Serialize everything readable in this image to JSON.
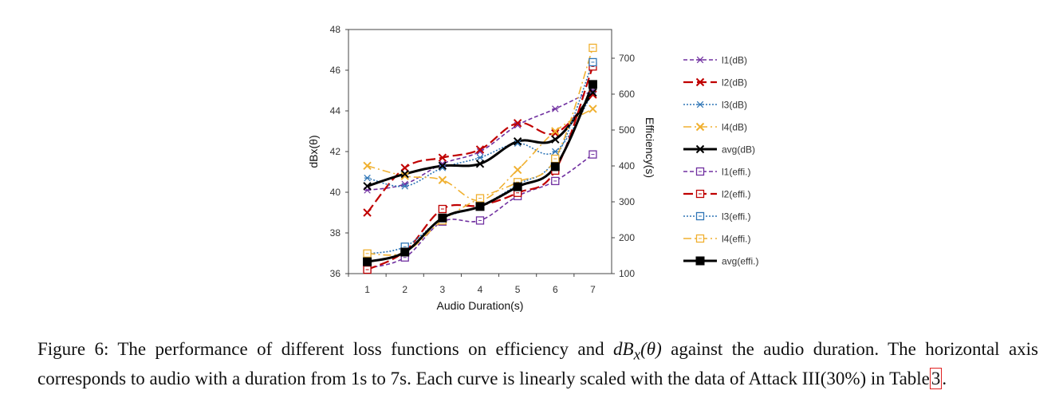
{
  "chart_data": {
    "type": "line",
    "xlabel": "Audio Duration(s)",
    "ylabel": "dBx(θ)",
    "y2label": "Efficiency(s)",
    "categories": [
      "1",
      "2",
      "3",
      "4",
      "5",
      "6",
      "7"
    ],
    "ylim": [
      36,
      48
    ],
    "yticks": [
      "36",
      "38",
      "40",
      "42",
      "44",
      "46",
      "48"
    ],
    "y2lim": [
      100,
      780
    ],
    "y2ticks": [
      "100",
      "200",
      "300",
      "400",
      "500",
      "600",
      "700"
    ],
    "grid": false,
    "legend_position": "right",
    "series": [
      {
        "name": "l1(dB)",
        "axis": "left",
        "color": "#7030a0",
        "dash": "5,3",
        "width": 1.6,
        "marker": "asterisk",
        "values": [
          40.1,
          40.4,
          41.4,
          42.0,
          43.3,
          44.1,
          45.0
        ]
      },
      {
        "name": "l2(dB)",
        "axis": "left",
        "color": "#c00000",
        "dash": "12,5",
        "width": 2.2,
        "marker": "x",
        "values": [
          39.0,
          41.2,
          41.7,
          42.1,
          43.4,
          42.9,
          44.8
        ]
      },
      {
        "name": "l3(dB)",
        "axis": "left",
        "color": "#2e75b6",
        "dash": "2,2",
        "width": 1.6,
        "marker": "asterisk",
        "values": [
          40.7,
          40.3,
          41.2,
          41.7,
          42.4,
          42.0,
          44.9
        ]
      },
      {
        "name": "l4(dB)",
        "axis": "left",
        "color": "#f0b030",
        "dash": "10,4,2,4",
        "width": 1.6,
        "marker": "x",
        "values": [
          41.3,
          40.8,
          40.6,
          39.6,
          41.1,
          43.0,
          44.1
        ]
      },
      {
        "name": "avg(dB)",
        "axis": "left",
        "color": "#000000",
        "dash": "",
        "width": 3,
        "marker": "x",
        "values": [
          40.3,
          40.9,
          41.3,
          41.4,
          42.5,
          42.6,
          44.9
        ]
      },
      {
        "name": "l1(effi.)",
        "axis": "right",
        "color": "#7030a0",
        "dash": "5,3",
        "width": 1.6,
        "marker": "square-open",
        "values": [
          115,
          145,
          245,
          248,
          316,
          358,
          432
        ]
      },
      {
        "name": "l2(effi.)",
        "axis": "right",
        "color": "#c00000",
        "dash": "12,5",
        "width": 2.2,
        "marker": "square-open",
        "values": [
          111,
          162,
          280,
          290,
          325,
          387,
          677
        ]
      },
      {
        "name": "l3(effi.)",
        "axis": "right",
        "color": "#2e75b6",
        "dash": "2,2",
        "width": 1.6,
        "marker": "square-open",
        "values": [
          155,
          175,
          253,
          288,
          348,
          419,
          689
        ]
      },
      {
        "name": "l4(effi.)",
        "axis": "right",
        "color": "#f0b030",
        "dash": "10,4,2,4",
        "width": 1.6,
        "marker": "square-open",
        "values": [
          156,
          160,
          248,
          310,
          355,
          420,
          729
        ]
      },
      {
        "name": "avg(effi.)",
        "axis": "right",
        "color": "#000000",
        "dash": "",
        "width": 3,
        "marker": "square-filled",
        "values": [
          133,
          160,
          255,
          287,
          342,
          398,
          627
        ]
      }
    ]
  },
  "caption": {
    "label": "Figure 6:",
    "text_a": "The performance of different loss functions on efficiency and",
    "math": "dBx(θ)",
    "text_b": "against the audio duration. The horizontal axis corresponds to audio with a duration from 1s to 7s. Each curve is linearly scaled with the data of Attack III(30%) in Table",
    "ref": "3",
    "end": "."
  }
}
